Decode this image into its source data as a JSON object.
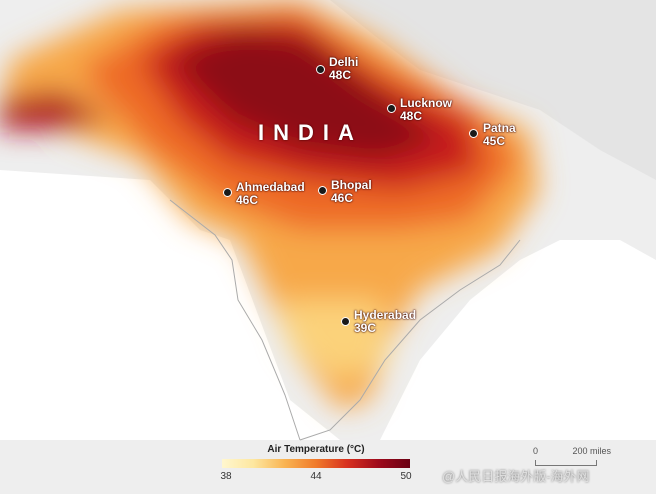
{
  "map": {
    "country_label": "INDIA",
    "cities": [
      {
        "name": "Delhi",
        "temp": "48C"
      },
      {
        "name": "Lucknow",
        "temp": "48C"
      },
      {
        "name": "Patna",
        "temp": "45C"
      },
      {
        "name": "Ahmedabad",
        "temp": "46C"
      },
      {
        "name": "Bhopal",
        "temp": "46C"
      },
      {
        "name": "Hyderabad",
        "temp": "39C"
      }
    ]
  },
  "legend": {
    "title": "Air Temperature (°C)",
    "ticks": [
      "38",
      "44",
      "50"
    ],
    "colors": [
      "#fff7cf",
      "#fde7a0",
      "#f9b452",
      "#f07a2a",
      "#d7301f",
      "#9e0a1c",
      "#6a0013"
    ]
  },
  "scale": {
    "zero": "0",
    "label": "200 miles"
  },
  "watermark": "@人民日报海外版-海外网"
}
